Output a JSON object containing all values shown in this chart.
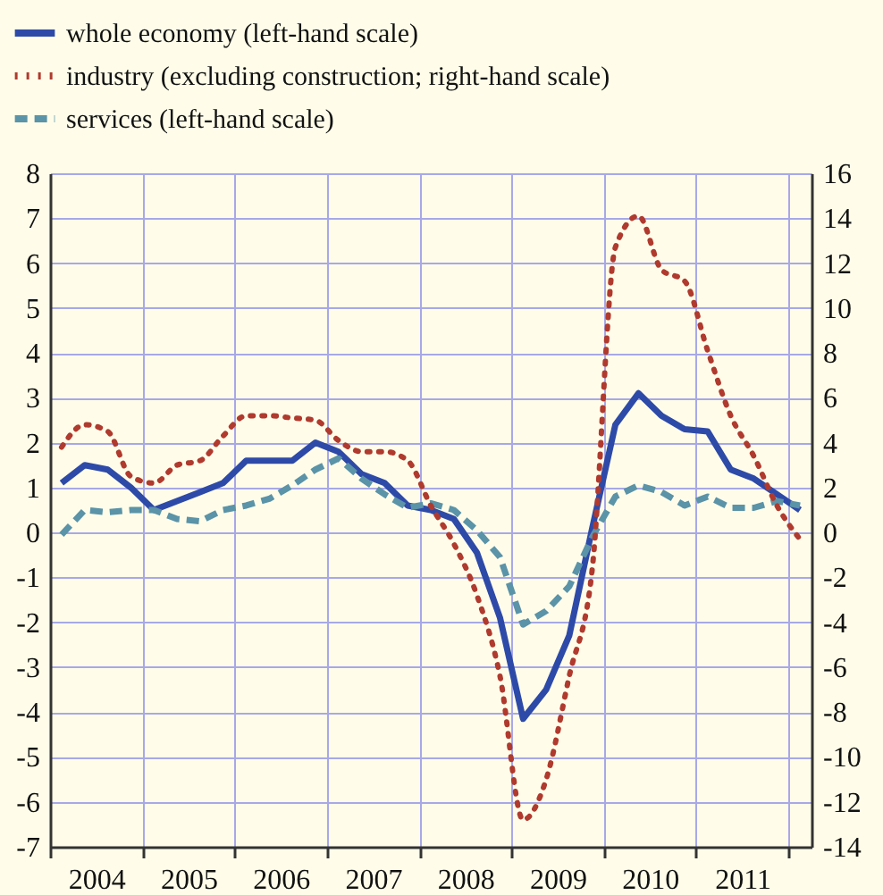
{
  "chart_data": {
    "type": "line",
    "x": [
      2004.125,
      2004.375,
      2004.625,
      2004.875,
      2005.125,
      2005.375,
      2005.625,
      2005.875,
      2006.125,
      2006.375,
      2006.625,
      2006.875,
      2007.125,
      2007.375,
      2007.625,
      2007.875,
      2008.125,
      2008.375,
      2008.625,
      2008.875,
      2009.125,
      2009.375,
      2009.625,
      2009.875,
      2010.125,
      2010.375,
      2010.625,
      2010.875,
      2011.125,
      2011.375,
      2011.625,
      2011.875,
      2012.125
    ],
    "series": [
      {
        "name": "whole economy (left-hand scale)",
        "color": "#2e4aa8",
        "line_style": "solid",
        "values": [
          1.1,
          1.5,
          1.4,
          1.0,
          0.5,
          0.7,
          0.9,
          1.1,
          1.6,
          1.6,
          1.6,
          2.0,
          1.8,
          1.3,
          1.1,
          0.6,
          0.5,
          0.3,
          -0.45,
          -1.9,
          -4.15,
          -3.5,
          -2.3,
          0.1,
          2.4,
          3.1,
          2.6,
          2.3,
          2.25,
          1.4,
          1.2,
          0.85,
          0.5
        ]
      },
      {
        "name": "industry (excluding construction; right-hand scale)",
        "color": "#b03a2e",
        "line_style": "dotted",
        "axis": "y2",
        "values": [
          3.8,
          4.8,
          4.5,
          2.5,
          2.2,
          3.0,
          3.2,
          4.3,
          5.2,
          5.2,
          5.1,
          5.0,
          4.1,
          3.6,
          3.6,
          3.2,
          1.2,
          -0.5,
          -2.8,
          -6.4,
          -12.8,
          -11.0,
          -6.4,
          -1.6,
          12.7,
          14.1,
          11.7,
          11.2,
          8.1,
          5.2,
          3.4,
          1.2,
          -0.3
        ]
      },
      {
        "name": "services (left-hand scale)",
        "color": "#5b93a8",
        "line_style": "dashed",
        "values": [
          -0.05,
          0.5,
          0.45,
          0.5,
          0.5,
          0.3,
          0.25,
          0.5,
          0.6,
          0.75,
          1.05,
          1.4,
          1.65,
          1.2,
          0.85,
          0.55,
          0.65,
          0.5,
          0.05,
          -0.55,
          -2.05,
          -1.75,
          -1.2,
          -0.1,
          0.8,
          1.05,
          0.9,
          0.6,
          0.8,
          0.55,
          0.55,
          0.7,
          0.6
        ]
      }
    ],
    "xlim": [
      2004,
      2012.25
    ],
    "xticks": [
      {
        "value": 2004,
        "label": null
      },
      {
        "value": 2004.5,
        "label": "2004"
      },
      {
        "value": 2005,
        "label": null
      },
      {
        "value": 2005.5,
        "label": "2005"
      },
      {
        "value": 2006,
        "label": null
      },
      {
        "value": 2006.5,
        "label": "2006"
      },
      {
        "value": 2007,
        "label": null
      },
      {
        "value": 2007.5,
        "label": "2007"
      },
      {
        "value": 2008,
        "label": null
      },
      {
        "value": 2008.5,
        "label": "2008"
      },
      {
        "value": 2009,
        "label": null
      },
      {
        "value": 2009.5,
        "label": "2009"
      },
      {
        "value": 2010,
        "label": null
      },
      {
        "value": 2010.5,
        "label": "2010"
      },
      {
        "value": 2011,
        "label": null
      },
      {
        "value": 2011.5,
        "label": "2011"
      },
      {
        "value": 2012,
        "label": null
      }
    ],
    "ylim": [
      -7,
      8
    ],
    "yticks": [
      -7,
      -6,
      -5,
      -4,
      -3,
      -2,
      -1,
      0,
      1,
      2,
      3,
      4,
      5,
      6,
      7,
      8
    ],
    "y2lim": [
      -14,
      16
    ],
    "y2ticks": [
      -14,
      -12,
      -10,
      -8,
      -6,
      -4,
      -2,
      0,
      2,
      4,
      6,
      8,
      10,
      12,
      14,
      16
    ],
    "grid": true,
    "legend": "top left",
    "marker": "none"
  }
}
